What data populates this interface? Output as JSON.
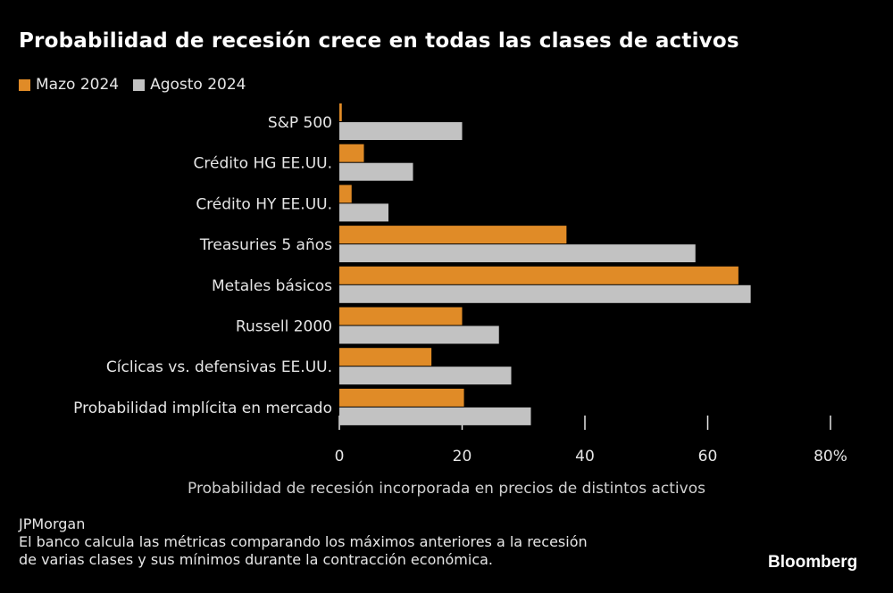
{
  "chart_data": {
    "type": "bar",
    "orientation": "horizontal",
    "title": "Probabilidad de recesión crece en todas las clases de activos",
    "xlabel": "Probabilidad de recesión incorporada en precios de distintos activos",
    "ylabel": "",
    "xlim": [
      0,
      80
    ],
    "xticks": [
      "0",
      "20",
      "40",
      "60",
      "80%"
    ],
    "tick_values": [
      0,
      20,
      40,
      60,
      80
    ],
    "grid": false,
    "legend_placement": "top-left",
    "categories": [
      "S&P 500",
      "Crédito HG EE.UU.",
      "Crédito HY EE.UU.",
      "Treasuries 5 años",
      "Metales básicos",
      "Russell 2000",
      "Cíclicas vs. defensivas EE.UU.",
      "Probabilidad implícita en mercado"
    ],
    "series": [
      {
        "name": "Mazo 2024",
        "color": "#e08b27",
        "values": [
          0.4,
          4,
          2,
          37,
          65,
          20,
          15,
          20.3
        ]
      },
      {
        "name": "Agosto 2024",
        "color": "#c2c2c2",
        "values": [
          20,
          12,
          8,
          58,
          67,
          26,
          28,
          31.2
        ]
      }
    ]
  },
  "footer": {
    "source": "JPMorgan",
    "note_line1": "El banco calcula las métricas comparando los máximos anteriores a la recesión",
    "note_line2": "de varias clases y sus mínimos durante la contracción económica.",
    "logo": "Bloomberg"
  }
}
